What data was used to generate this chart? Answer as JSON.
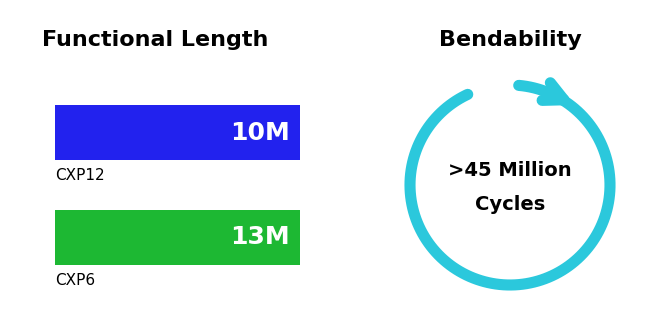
{
  "title_left": "Functional Length",
  "title_right": "Bendability",
  "bar1_label": "10M",
  "bar1_sublabel": "CXP12",
  "bar1_color": "#2222EE",
  "bar2_label": "13M",
  "bar2_sublabel": "CXP6",
  "bar2_color": "#1DB833",
  "cycle_text_line1": ">45 Million",
  "cycle_text_line2": "Cycles",
  "cycle_color": "#2BC8DC",
  "background_color": "#FFFFFF",
  "title_fontsize": 16,
  "bar_label_fontsize": 18,
  "sublabel_fontsize": 11,
  "cycle_fontsize": 14
}
